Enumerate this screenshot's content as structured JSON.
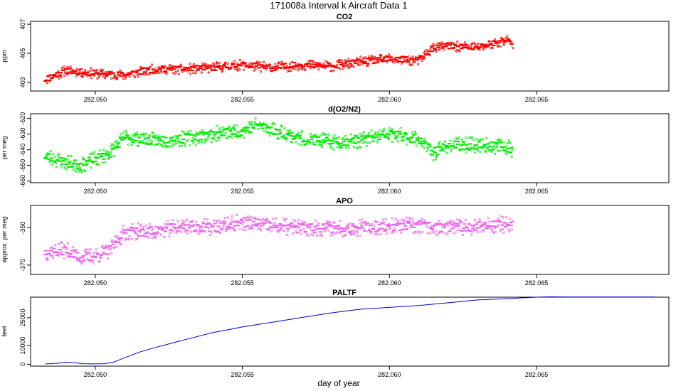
{
  "title": "171008a   Interval k Aircraft Data 1",
  "xlabel": "day of year",
  "chart_data": [
    {
      "type": "scatter",
      "title": "CO2",
      "ylabel": "ppm",
      "color": "#ff0000",
      "xlim": [
        282.0478,
        282.0695
      ],
      "ylim": [
        402.4,
        407.2
      ],
      "xticks": [
        "282.050",
        "282.055",
        "282.060",
        "282.065"
      ],
      "yticks": [
        "403",
        "405",
        "407"
      ],
      "x_range": [
        282.0483,
        282.0642
      ],
      "series": [
        {
          "x": [
            282.0483,
            282.049,
            282.05,
            282.051,
            282.052,
            282.053,
            282.054,
            282.055,
            282.056,
            282.057,
            282.058,
            282.059,
            282.06,
            282.061,
            282.0615,
            282.062,
            282.063,
            282.064,
            282.0642
          ],
          "y": [
            403.2,
            403.8,
            403.6,
            403.5,
            403.9,
            403.9,
            404.0,
            404.2,
            404.0,
            404.2,
            404.1,
            404.4,
            404.6,
            404.5,
            405.4,
            405.5,
            405.4,
            405.9,
            405.6
          ]
        }
      ]
    },
    {
      "type": "scatter",
      "title": "d(O2/N2)",
      "ylabel": "per meg",
      "color": "#00ee00",
      "xlim": [
        282.0478,
        282.0695
      ],
      "ylim": [
        -661,
        -617
      ],
      "xticks": [
        "282.050",
        "282.055",
        "282.060",
        "282.065"
      ],
      "yticks": [
        "-660",
        "-650",
        "-640",
        "-630",
        "-620"
      ],
      "x_range": [
        282.0483,
        282.0642
      ],
      "series": [
        {
          "x": [
            282.0483,
            282.049,
            282.0495,
            282.05,
            282.0505,
            282.051,
            282.052,
            282.053,
            282.054,
            282.055,
            282.0555,
            282.056,
            282.057,
            282.058,
            282.059,
            282.06,
            282.061,
            282.0615,
            282.062,
            282.063,
            282.064,
            282.0642
          ],
          "y": [
            -644,
            -648,
            -650,
            -646,
            -642,
            -632,
            -634,
            -633,
            -630,
            -628,
            -624,
            -627,
            -633,
            -635,
            -634,
            -630,
            -633,
            -642,
            -637,
            -637,
            -638,
            -640
          ]
        }
      ]
    },
    {
      "type": "scatter",
      "title": "APO",
      "ylabel": "approx. per meg",
      "color": "#ee66ee",
      "xlim": [
        282.0478,
        282.0695
      ],
      "ylim": [
        -375,
        -338
      ],
      "xticks": [
        "282.050",
        "282.055",
        "282.060",
        "282.065"
      ],
      "yticks": [
        "-370",
        "-350"
      ],
      "x_range": [
        282.0483,
        282.0642
      ],
      "series": [
        {
          "x": [
            282.0483,
            282.049,
            282.0495,
            282.05,
            282.0505,
            282.051,
            282.052,
            282.053,
            282.054,
            282.055,
            282.056,
            282.057,
            282.058,
            282.059,
            282.06,
            282.061,
            282.062,
            282.063,
            282.064,
            282.0642
          ],
          "y": [
            -363,
            -362,
            -366,
            -365,
            -362,
            -352,
            -352,
            -349,
            -350,
            -347,
            -349,
            -350,
            -350,
            -350,
            -349,
            -349,
            -350,
            -349,
            -348,
            -350
          ]
        }
      ]
    },
    {
      "type": "line",
      "title": "PALTF",
      "ylabel": "feet",
      "color": "#0000cc",
      "xlim": [
        282.0478,
        282.0695
      ],
      "ylim": [
        -1000,
        36000
      ],
      "xticks": [
        "282.050",
        "282.055",
        "282.060",
        "282.065"
      ],
      "yticks": [
        "0",
        "10000",
        "25000"
      ],
      "series": [
        {
          "x": [
            282.0483,
            282.0487,
            282.049,
            282.0493,
            282.0496,
            282.05,
            282.0503,
            282.0506,
            282.051,
            282.0515,
            282.052,
            282.053,
            282.054,
            282.0545,
            282.055,
            282.056,
            282.057,
            282.058,
            282.059,
            282.06,
            282.061,
            282.062,
            282.063,
            282.064,
            282.065,
            282.0655,
            282.066,
            282.067,
            282.068,
            282.069
          ],
          "y": [
            200,
            500,
            1100,
            800,
            300,
            200,
            300,
            1000,
            3500,
            6500,
            8800,
            13000,
            17000,
            18500,
            20000,
            22500,
            25000,
            27500,
            29500,
            30500,
            31500,
            33000,
            34500,
            35200,
            36000,
            36200,
            36100,
            36100,
            36100,
            36100
          ]
        }
      ]
    }
  ]
}
